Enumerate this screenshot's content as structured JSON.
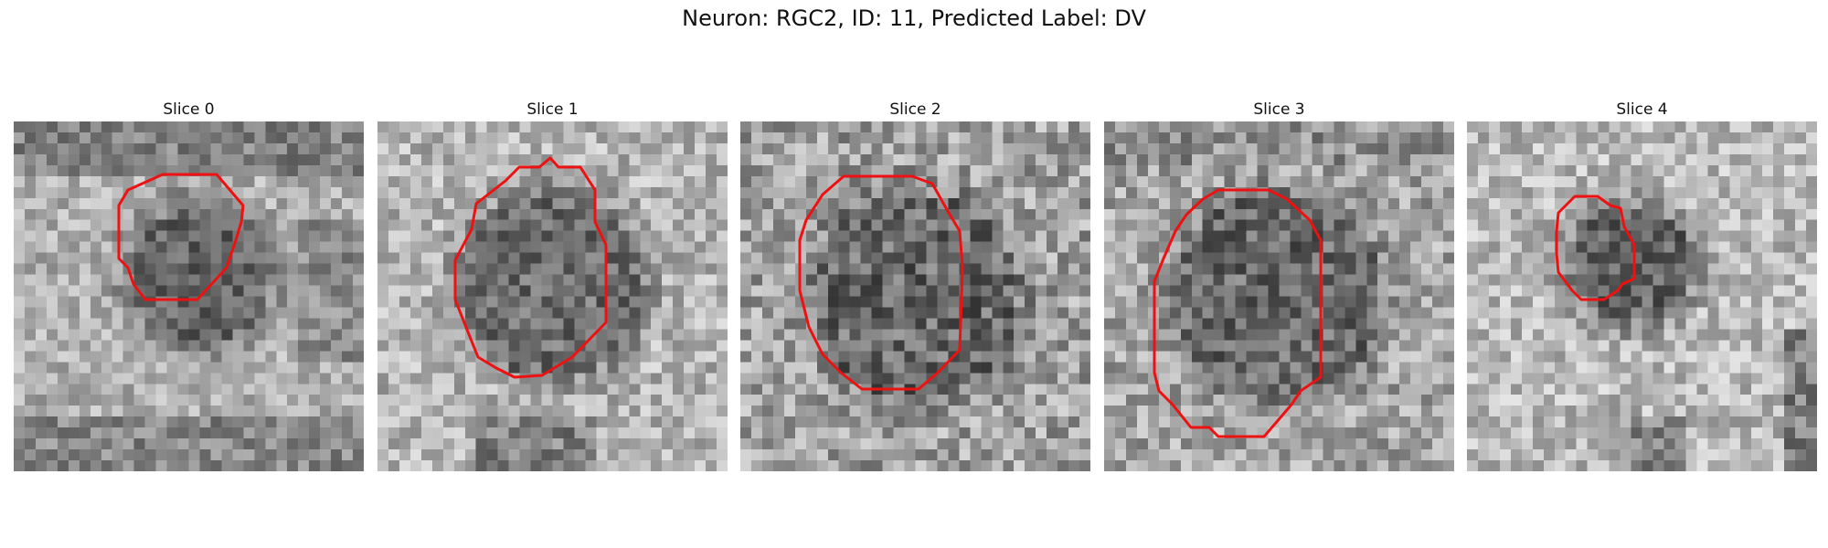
{
  "figure": {
    "title": "Neuron: RGC2, ID: 11, Predicted Label: DV"
  },
  "panels": [
    {
      "label": "Slice 0"
    },
    {
      "label": "Slice 1"
    },
    {
      "label": "Slice 2"
    },
    {
      "label": "Slice 3"
    },
    {
      "label": "Slice 4"
    }
  ],
  "colors": {
    "contour": "#ee1111",
    "background": "#ffffff"
  },
  "image_style": "grayscale pixelated microscopy crops with red cell-outline contour"
}
